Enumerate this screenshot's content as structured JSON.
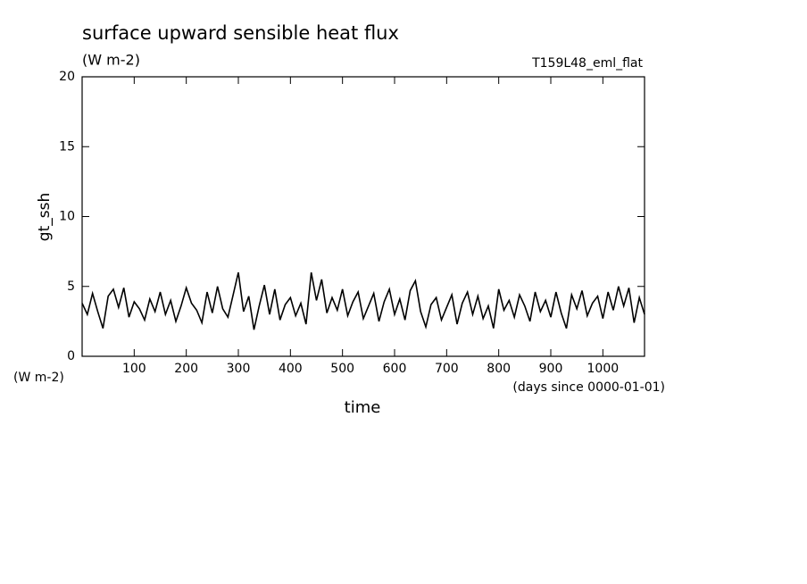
{
  "chart_data": {
    "type": "line",
    "title": "surface upward sensible heat flux",
    "subtitle": "(W m-2)",
    "annotation": "T159L48_eml_flat",
    "y_label": "gt_ssh",
    "y_units": "(W m-2)",
    "x_label": "time",
    "x_units": "(days since 0000-01-01)",
    "xlim": [
      0,
      1080
    ],
    "xticks": [
      100,
      200,
      300,
      400,
      500,
      600,
      700,
      800,
      900,
      1000
    ],
    "ylim": [
      0,
      20
    ],
    "yticks": [
      0,
      5,
      10,
      15,
      20
    ],
    "color": "#000000",
    "x": [
      0,
      10,
      20,
      30,
      40,
      50,
      60,
      70,
      80,
      90,
      100,
      110,
      120,
      130,
      140,
      150,
      160,
      170,
      180,
      190,
      200,
      210,
      220,
      230,
      240,
      250,
      260,
      270,
      280,
      290,
      300,
      310,
      320,
      330,
      340,
      350,
      360,
      370,
      380,
      390,
      400,
      410,
      420,
      430,
      440,
      450,
      460,
      470,
      480,
      490,
      500,
      510,
      520,
      530,
      540,
      550,
      560,
      570,
      580,
      590,
      600,
      610,
      620,
      630,
      640,
      650,
      660,
      670,
      680,
      690,
      700,
      710,
      720,
      730,
      740,
      750,
      760,
      770,
      780,
      790,
      800,
      810,
      820,
      830,
      840,
      850,
      860,
      870,
      880,
      890,
      900,
      910,
      920,
      930,
      940,
      950,
      960,
      970,
      980,
      990,
      1000,
      1010,
      1020,
      1030,
      1040,
      1050,
      1060,
      1070,
      1080
    ],
    "values": [
      3.8,
      3.0,
      4.5,
      3.2,
      2.0,
      4.3,
      4.8,
      3.5,
      4.9,
      2.8,
      3.9,
      3.4,
      2.6,
      4.1,
      3.2,
      4.6,
      3.0,
      4.0,
      2.5,
      3.6,
      4.9,
      3.8,
      3.3,
      2.4,
      4.6,
      3.1,
      5.0,
      3.4,
      2.8,
      4.4,
      6.0,
      3.2,
      4.3,
      1.9,
      3.6,
      5.1,
      3.0,
      4.8,
      2.6,
      3.7,
      4.2,
      2.9,
      3.8,
      2.3,
      6.0,
      4.0,
      5.5,
      3.1,
      4.2,
      3.3,
      4.8,
      2.9,
      3.9,
      4.6,
      2.7,
      3.6,
      4.5,
      2.5,
      3.9,
      4.8,
      3.0,
      4.1,
      2.6,
      4.7,
      5.4,
      3.2,
      2.1,
      3.7,
      4.2,
      2.6,
      3.5,
      4.4,
      2.3,
      3.8,
      4.6,
      3.0,
      4.3,
      2.7,
      3.6,
      2.0,
      4.8,
      3.3,
      4.0,
      2.8,
      4.4,
      3.6,
      2.5,
      4.6,
      3.2,
      4.0,
      2.8,
      4.6,
      3.1,
      2.0,
      4.4,
      3.4,
      4.7,
      2.9,
      3.8,
      4.3,
      2.7,
      4.6,
      3.3,
      5.0,
      3.6,
      4.9,
      2.4,
      4.2,
      3.0
    ]
  }
}
